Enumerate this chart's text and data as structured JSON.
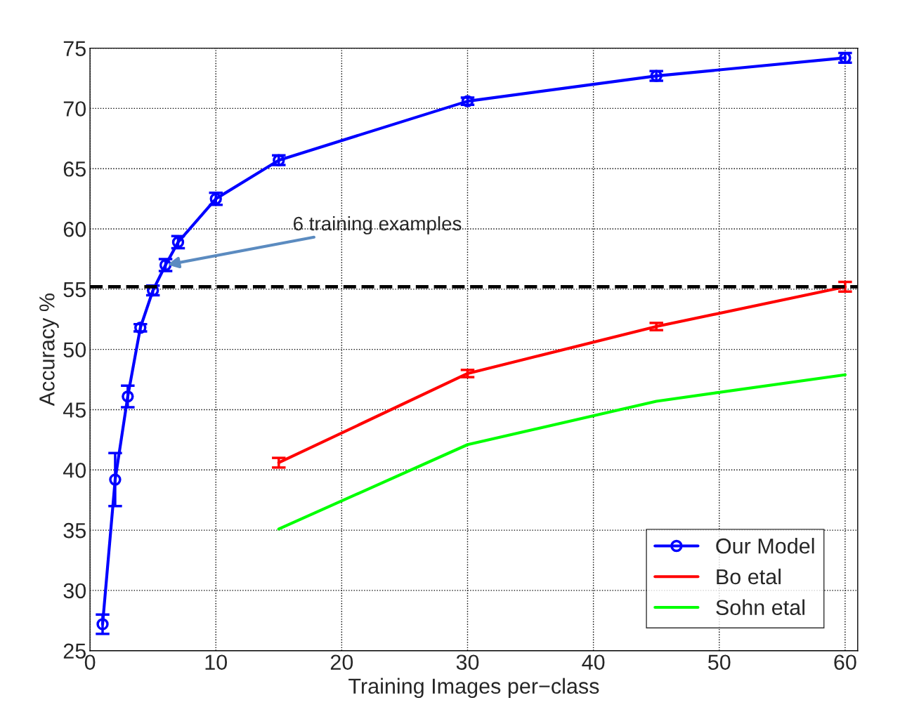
{
  "chart_data": {
    "type": "line",
    "xlabel": "Training Images per−class",
    "ylabel": "Accuracy %",
    "xlim": [
      0,
      61
    ],
    "ylim": [
      25,
      75
    ],
    "xticks": [
      0,
      10,
      20,
      30,
      40,
      50,
      60
    ],
    "yticks": [
      25,
      30,
      35,
      40,
      45,
      50,
      55,
      60,
      65,
      70,
      75
    ],
    "grid": true,
    "legend": "bottom right",
    "series": [
      {
        "name": "Our Model",
        "color": "#0000ff",
        "marker": "circle",
        "x": [
          1,
          2,
          3,
          4,
          5,
          6,
          7,
          10,
          15,
          30,
          45,
          60
        ],
        "values": [
          27.2,
          39.2,
          46.1,
          51.8,
          54.9,
          57.0,
          58.9,
          62.5,
          65.7,
          70.6,
          72.7,
          74.2
        ],
        "errors": [
          0.8,
          2.2,
          0.9,
          0.3,
          0.4,
          0.5,
          0.5,
          0.5,
          0.4,
          0.3,
          0.4,
          0.4
        ]
      },
      {
        "name": "Bo etal",
        "color": "#ff0000",
        "x": [
          15,
          30,
          45,
          60
        ],
        "values": [
          40.6,
          48.0,
          51.9,
          55.2
        ],
        "errors": [
          0.4,
          0.3,
          0.3,
          0.4
        ]
      },
      {
        "name": "Sohn etal",
        "color": "#00ff00",
        "x": [
          15,
          30,
          45,
          60
        ],
        "values": [
          35.1,
          42.1,
          45.7,
          47.9
        ]
      }
    ],
    "ref_lines": [
      {
        "axis": "y",
        "value": 55.2,
        "color": "#000000",
        "line_style": "dashed"
      }
    ],
    "annotations": [
      {
        "text": "6 training examples",
        "x": 6,
        "y": 57.0
      }
    ]
  }
}
